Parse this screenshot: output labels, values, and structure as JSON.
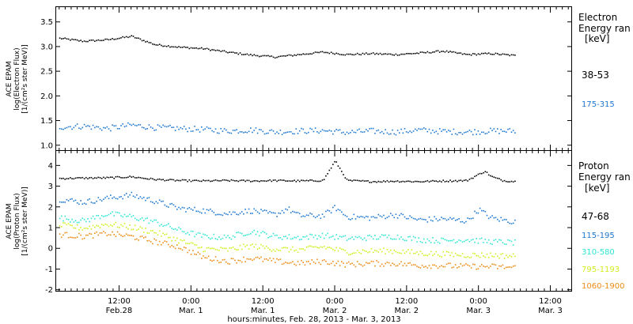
{
  "x_caption": "hours:minutes, Feb. 28, 2013 - Mar.  3, 2013",
  "x_ticks": [
    {
      "hour": 12,
      "line1": "12:00",
      "line2": "Feb.28"
    },
    {
      "hour": 24,
      "line1": "0:00",
      "line2": "Mar.  1"
    },
    {
      "hour": 36,
      "line1": "12:00",
      "line2": "Mar.  1"
    },
    {
      "hour": 48,
      "line1": "0:00",
      "line2": "Mar.  2"
    },
    {
      "hour": 60,
      "line1": "12:00",
      "line2": "Mar.  2"
    },
    {
      "hour": 72,
      "line1": "0:00",
      "line2": "Mar.  3"
    },
    {
      "hour": 84,
      "line1": "12:00",
      "line2": "Mar.  3"
    }
  ],
  "chart_data": [
    {
      "type": "scatter",
      "ylabel": [
        "ACE EPAM",
        "log(Electron Flux)",
        "[1/(cm²s ster MeV)]"
      ],
      "xlim": [
        1.5,
        87.5
      ],
      "ylim": [
        0.9,
        3.8
      ],
      "yticks": [
        "1.0",
        "1.5",
        "2.0",
        "2.5",
        "3.0",
        "3.5"
      ],
      "ytick_values": [
        1.0,
        1.5,
        2.0,
        2.5,
        3.0,
        3.5
      ],
      "legend_title": [
        "Electron",
        "Energy ran",
        "[keV]"
      ],
      "series": [
        {
          "name": "38-53",
          "color": "#000000",
          "x": [
            2,
            6,
            10,
            14,
            18,
            22,
            26,
            30,
            34,
            38,
            42,
            46,
            50,
            54,
            58,
            62,
            66,
            70,
            74,
            78
          ],
          "y": [
            3.18,
            3.12,
            3.15,
            3.22,
            3.05,
            3.0,
            2.97,
            2.9,
            2.84,
            2.8,
            2.85,
            2.9,
            2.85,
            2.87,
            2.85,
            2.88,
            2.92,
            2.85,
            2.87,
            2.83
          ]
        },
        {
          "name": "175-315",
          "color": "#1e78d2",
          "x": [
            2,
            6,
            10,
            14,
            18,
            22,
            26,
            30,
            34,
            38,
            42,
            46,
            50,
            54,
            58,
            62,
            66,
            70,
            74,
            78
          ],
          "y": [
            1.38,
            1.4,
            1.35,
            1.42,
            1.37,
            1.35,
            1.33,
            1.3,
            1.32,
            1.28,
            1.3,
            1.31,
            1.27,
            1.3,
            1.28,
            1.32,
            1.29,
            1.28,
            1.3,
            1.3
          ]
        }
      ]
    },
    {
      "type": "scatter",
      "ylabel": [
        "ACE EPAM",
        "log(Proton Flux)",
        "[1/(cm²s ster MeV)]"
      ],
      "xlim": [
        1.5,
        87.5
      ],
      "ylim": [
        -2.05,
        4.7
      ],
      "yticks": [
        "-2",
        "-1",
        "0",
        "1",
        "2",
        "3",
        "4"
      ],
      "ytick_values": [
        -2,
        -1,
        0,
        1,
        2,
        3,
        4
      ],
      "legend_title": [
        "Proton",
        "Energy ran",
        "[keV]"
      ],
      "series": [
        {
          "name": "47-68",
          "color": "#000000",
          "x": [
            2,
            6,
            10,
            14,
            18,
            22,
            26,
            30,
            34,
            38,
            42,
            46,
            48,
            50,
            54,
            58,
            62,
            66,
            70,
            73,
            74,
            76,
            78
          ],
          "y": [
            3.4,
            3.42,
            3.43,
            3.48,
            3.35,
            3.3,
            3.28,
            3.3,
            3.28,
            3.3,
            3.28,
            3.3,
            4.25,
            3.3,
            3.25,
            3.27,
            3.25,
            3.28,
            3.3,
            3.75,
            3.5,
            3.3,
            3.25
          ]
        },
        {
          "name": "115-195",
          "color": "#1e78d2",
          "x": [
            2,
            6,
            10,
            14,
            18,
            22,
            26,
            30,
            34,
            38,
            40,
            42,
            46,
            48,
            50,
            54,
            58,
            62,
            66,
            70,
            72,
            74,
            78
          ],
          "y": [
            2.4,
            2.25,
            2.45,
            2.6,
            2.3,
            1.95,
            1.85,
            1.7,
            1.85,
            1.65,
            1.95,
            1.6,
            1.6,
            2.0,
            1.55,
            1.5,
            1.65,
            1.4,
            1.45,
            1.35,
            1.9,
            1.5,
            1.3
          ]
        },
        {
          "name": "310-580",
          "color": "#2ee6d2",
          "x": [
            2,
            6,
            10,
            14,
            18,
            22,
            26,
            30,
            34,
            38,
            42,
            46,
            50,
            54,
            58,
            62,
            66,
            70,
            74,
            78
          ],
          "y": [
            1.5,
            1.35,
            1.7,
            1.55,
            1.3,
            0.9,
            0.6,
            0.55,
            0.85,
            0.6,
            0.55,
            0.65,
            0.5,
            0.55,
            0.6,
            0.45,
            0.4,
            0.45,
            0.35,
            0.3
          ]
        },
        {
          "name": "795-1193",
          "color": "#d2ee20",
          "x": [
            2,
            6,
            10,
            14,
            18,
            22,
            26,
            30,
            34,
            38,
            42,
            46,
            50,
            54,
            58,
            62,
            66,
            70,
            74,
            78
          ],
          "y": [
            1.15,
            1.0,
            1.2,
            1.05,
            0.8,
            0.4,
            0.0,
            -0.05,
            0.15,
            0.0,
            -0.05,
            0.1,
            -0.15,
            -0.1,
            -0.1,
            -0.2,
            -0.25,
            -0.3,
            -0.3,
            -0.35
          ]
        },
        {
          "name": "1060-1900",
          "color": "#ee8c14",
          "x": [
            2,
            6,
            10,
            14,
            18,
            22,
            26,
            30,
            34,
            38,
            42,
            46,
            50,
            54,
            58,
            62,
            66,
            70,
            74,
            78
          ],
          "y": [
            0.7,
            0.6,
            0.75,
            0.6,
            0.35,
            0.1,
            -0.4,
            -0.6,
            -0.45,
            -0.6,
            -0.7,
            -0.6,
            -0.75,
            -0.7,
            -0.7,
            -0.8,
            -0.8,
            -0.85,
            -0.85,
            -0.9
          ]
        }
      ]
    }
  ]
}
